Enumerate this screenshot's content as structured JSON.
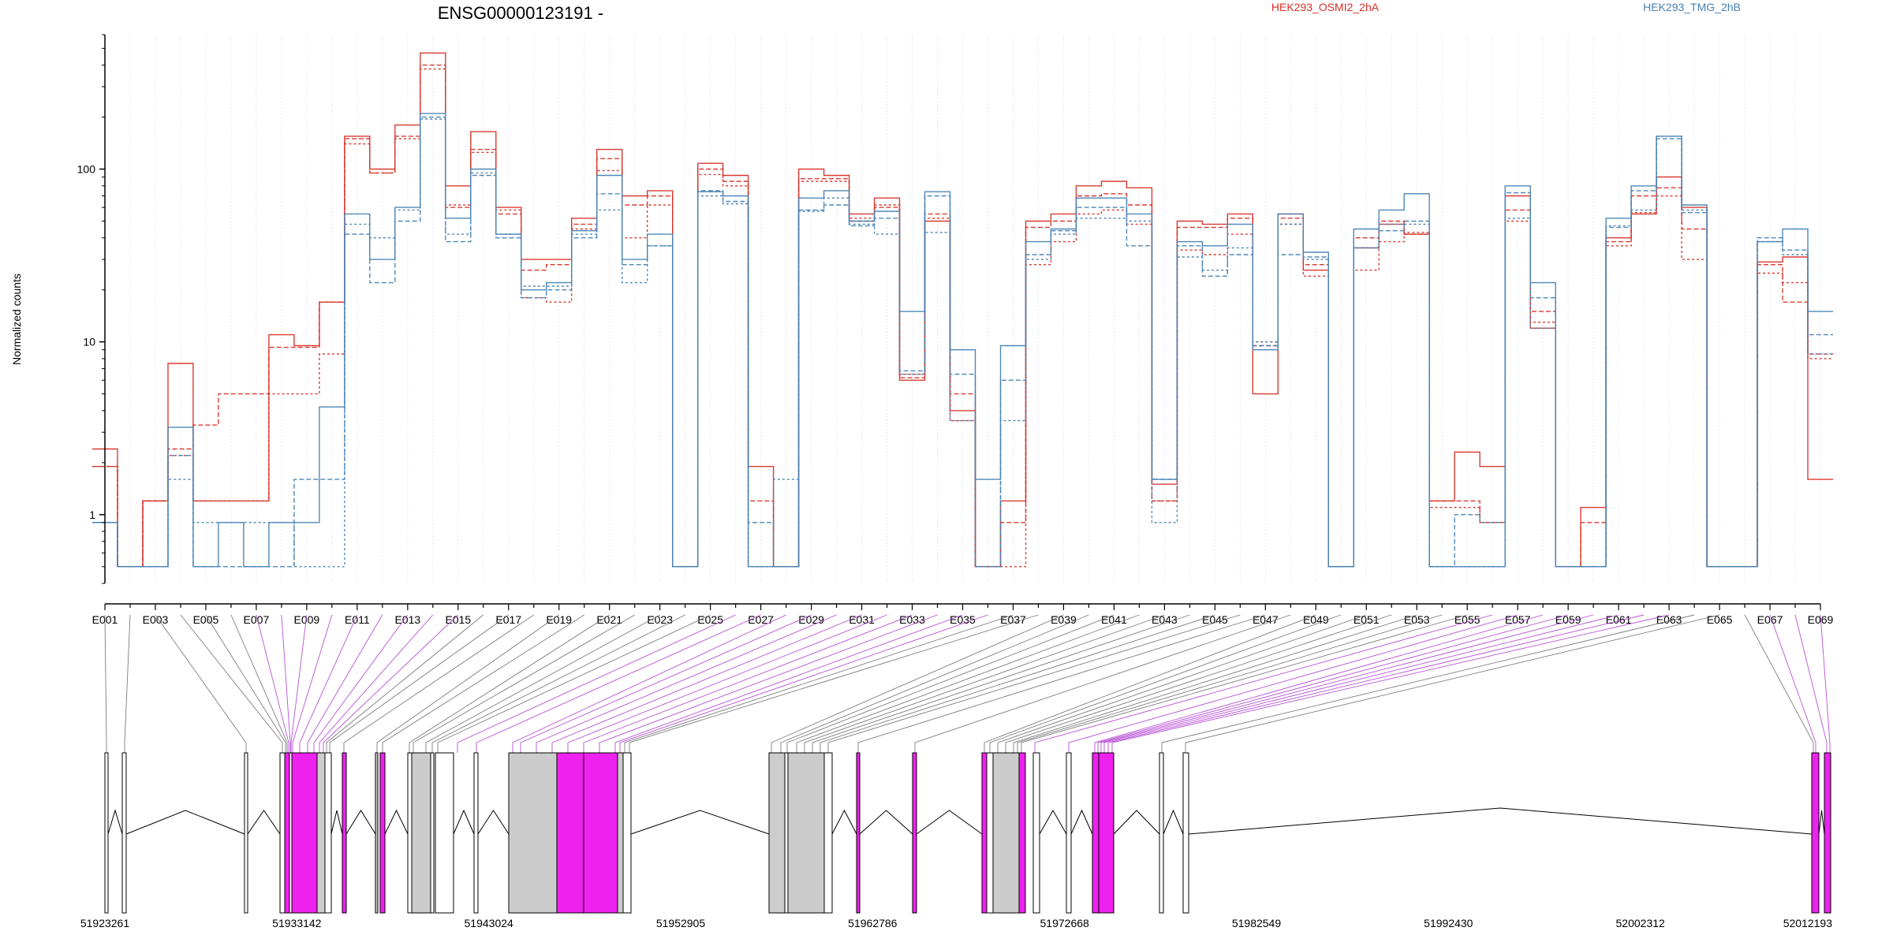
{
  "chart_data": {
    "type": "line",
    "title": "ENSG00000123191 -",
    "ylabel": "Normalized counts",
    "xlabel": "",
    "yscale": "log",
    "ylim": [
      0.4,
      600
    ],
    "yticks": [
      1,
      10,
      100
    ],
    "categories": [
      "E001",
      "E002",
      "E003",
      "E004",
      "E005",
      "E006",
      "E007",
      "E008",
      "E009",
      "E010",
      "E011",
      "E012",
      "E013",
      "E014",
      "E015",
      "E016",
      "E017",
      "E018",
      "E019",
      "E020",
      "E021",
      "E022",
      "E023",
      "E024",
      "E025",
      "E026",
      "E027",
      "E028",
      "E029",
      "E030",
      "E031",
      "E032",
      "E033",
      "E034",
      "E035",
      "E036",
      "E037",
      "E038",
      "E039",
      "E040",
      "E041",
      "E042",
      "E043",
      "E044",
      "E045",
      "E046",
      "E047",
      "E048",
      "E049",
      "E050",
      "E051",
      "E052",
      "E053",
      "E054",
      "E055",
      "E056",
      "E057",
      "E058",
      "E059",
      "E060",
      "E061",
      "E062",
      "E063",
      "E064",
      "E065",
      "E066",
      "E067",
      "E068",
      "E069"
    ],
    "xtick_labels": [
      "E001",
      "E003",
      "E005",
      "E007",
      "E009",
      "E011",
      "E013",
      "E015",
      "E017",
      "E019",
      "E021",
      "E023",
      "E025",
      "E027",
      "E029",
      "E031",
      "E033",
      "E035",
      "E037",
      "E039",
      "E041",
      "E043",
      "E045",
      "E047",
      "E049",
      "E051",
      "E053",
      "E055",
      "E057",
      "E059",
      "E061",
      "E063",
      "E065",
      "E067",
      "E069"
    ],
    "groups": [
      {
        "name": "HEK293_OSMI2_2hA",
        "color": "#d73027"
      },
      {
        "name": "HEK293_TMG_2hB",
        "color": "#4682b4"
      }
    ],
    "series": [
      {
        "group": "HEK293_OSMI2_2hA",
        "replicate": 1,
        "values": [
          2.4,
          0.5,
          1.2,
          7.5,
          1.2,
          1.2,
          1.2,
          11,
          9.5,
          17,
          155,
          100,
          180,
          470,
          80,
          165,
          60,
          30,
          30,
          52,
          130,
          70,
          75,
          0.5,
          108,
          92,
          1.9,
          0.5,
          100,
          92,
          55,
          68,
          6,
          50,
          4,
          0.5,
          1.2,
          50,
          55,
          80,
          85,
          78,
          1.5,
          50,
          48,
          55,
          5,
          55,
          26,
          0.5,
          35,
          48,
          42,
          1.2,
          2.3,
          1.9,
          70,
          12,
          0.5,
          1.1,
          40,
          55,
          90,
          60,
          0.5,
          0.5,
          29,
          31,
          1.6
        ]
      },
      {
        "group": "HEK293_OSMI2_2hA",
        "replicate": 2,
        "values": [
          1.9,
          0.5,
          1.2,
          2.4,
          3.3,
          5,
          5,
          9.3,
          9.3,
          17,
          150,
          95,
          155,
          400,
          60,
          130,
          55,
          26,
          28,
          48,
          115,
          62,
          70,
          0.5,
          100,
          85,
          1.2,
          0.5,
          88,
          88,
          50,
          60,
          6.2,
          55,
          5,
          0.5,
          0.9,
          46,
          50,
          70,
          72,
          62,
          1.2,
          46,
          46,
          52,
          9.5,
          52,
          28,
          0.5,
          40,
          50,
          42,
          1.2,
          1.2,
          0.9,
          58,
          15,
          0.5,
          0.9,
          38,
          70,
          78,
          45,
          0.5,
          0.5,
          28,
          17,
          8.5
        ]
      },
      {
        "group": "HEK293_OSMI2_2hA",
        "replicate": 3,
        "values": [
          1.9,
          0.5,
          1.2,
          2.2,
          1.2,
          1.2,
          1.2,
          5,
          5,
          8.5,
          140,
          95,
          150,
          380,
          62,
          125,
          58,
          18,
          17,
          45,
          98,
          40,
          62,
          0.5,
          93,
          80,
          0.5,
          0.5,
          85,
          85,
          52,
          62,
          6.5,
          52,
          3.5,
          0.5,
          0.5,
          28,
          38,
          55,
          58,
          48,
          1.2,
          34,
          32,
          42,
          10,
          48,
          24,
          0.5,
          26,
          38,
          43,
          1.1,
          1.1,
          0.9,
          50,
          13,
          0.5,
          0.5,
          36,
          56,
          70,
          30,
          0.5,
          0.5,
          25,
          22,
          8
        ]
      },
      {
        "group": "HEK293_TMG_2hB",
        "replicate": 1,
        "values": [
          0.9,
          0.5,
          0.5,
          3.2,
          0.5,
          0.9,
          0.5,
          0.9,
          0.9,
          4.2,
          55,
          30,
          60,
          210,
          52,
          100,
          42,
          20,
          22,
          44,
          92,
          30,
          42,
          0.5,
          74,
          70,
          0.5,
          0.5,
          68,
          75,
          50,
          57,
          15,
          74,
          9,
          1.6,
          9.5,
          38,
          45,
          68,
          68,
          55,
          1.6,
          38,
          36,
          48,
          9,
          55,
          33,
          0.5,
          45,
          58,
          72,
          0.5,
          0.5,
          0.5,
          80,
          22,
          0.5,
          0.5,
          52,
          80,
          155,
          62,
          0.5,
          0.5,
          38,
          45,
          15
        ]
      },
      {
        "group": "HEK293_TMG_2hB",
        "replicate": 2,
        "values": [
          0.9,
          0.5,
          0.5,
          2.2,
          0.5,
          0.5,
          0.5,
          0.5,
          1.6,
          1.6,
          42,
          22,
          50,
          200,
          38,
          92,
          40,
          18,
          20,
          40,
          72,
          28,
          36,
          0.5,
          75,
          65,
          0.9,
          0.5,
          58,
          62,
          47,
          52,
          6.8,
          70,
          6.5,
          0.5,
          6,
          32,
          44,
          60,
          60,
          36,
          1.6,
          36,
          24,
          32,
          9.5,
          32,
          31,
          0.5,
          35,
          44,
          50,
          0.5,
          1.0,
          0.9,
          73,
          18,
          0.5,
          0.5,
          46,
          75,
          150,
          56,
          0.5,
          0.5,
          40,
          34,
          11
        ]
      },
      {
        "group": "HEK293_TMG_2hB",
        "replicate": 3,
        "values": [
          0.9,
          0.5,
          0.5,
          1.6,
          0.9,
          0.9,
          0.9,
          0.9,
          0.5,
          0.5,
          48,
          40,
          58,
          195,
          42,
          95,
          42,
          21,
          21,
          42,
          58,
          22,
          36,
          0.5,
          70,
          63,
          0.5,
          1.6,
          57,
          68,
          48,
          42,
          6.5,
          43,
          3.5,
          0.5,
          3.5,
          30,
          42,
          52,
          52,
          50,
          0.9,
          31,
          26,
          35,
          10,
          48,
          30,
          0.5,
          35,
          48,
          48,
          0.5,
          0.5,
          0.5,
          52,
          12,
          0.5,
          0.5,
          47,
          58,
          155,
          58,
          0.5,
          0.5,
          38,
          32,
          8.5
        ]
      }
    ],
    "genomic_axis_labels": [
      "51923261",
      "51933142",
      "51943024",
      "51952905",
      "51962786",
      "51972668",
      "51982549",
      "51992430",
      "52002312",
      "52012193"
    ],
    "grid": true
  }
}
